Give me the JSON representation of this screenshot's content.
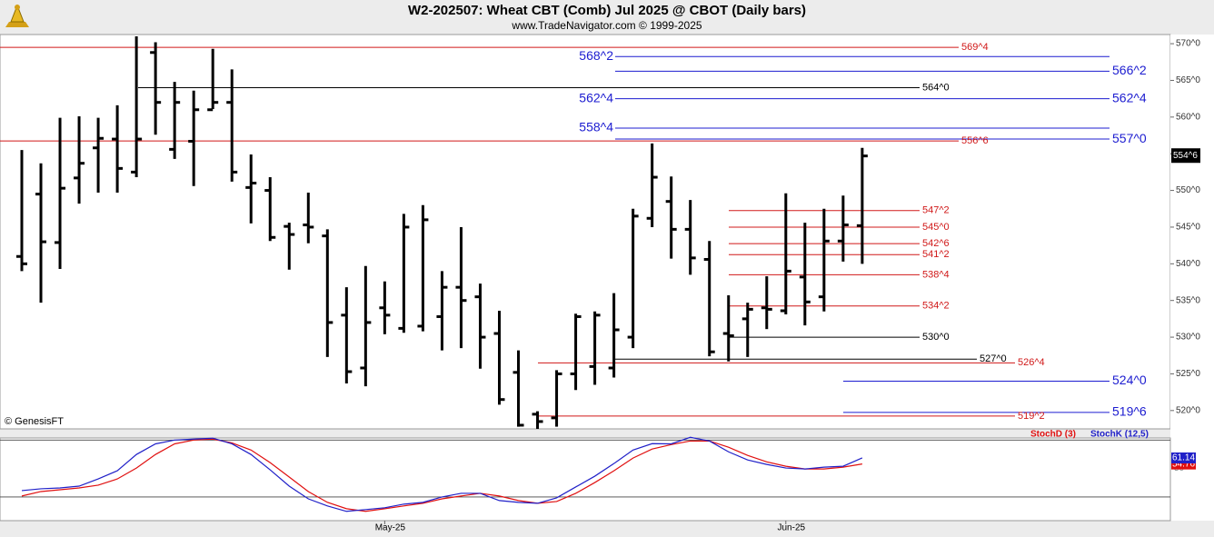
{
  "header": {
    "title": "W2-202507:  Wheat CBT (Comb) Jul 2025 @ CBOT  (Daily bars)",
    "subtitle": "www.TradeNavigator.com © 1999-2025",
    "credit": "© GenesisFT"
  },
  "chart_data": [
    {
      "type": "ohlc",
      "color": "#000000",
      "categories": [
        null,
        null,
        null,
        null,
        null,
        null,
        null,
        null,
        null,
        null,
        null,
        null,
        null,
        null,
        null,
        null,
        null,
        null,
        null,
        "May-25",
        null,
        null,
        null,
        null,
        null,
        null,
        null,
        null,
        null,
        null,
        null,
        null,
        null,
        null,
        null,
        null,
        null,
        null,
        null,
        null,
        "Jun-25",
        null,
        null,
        null,
        null
      ],
      "open": [
        541,
        549.5,
        542.9,
        551.7,
        555.8,
        557,
        552.5,
        568.8,
        555.6,
        556.7,
        561,
        562,
        550.4,
        550,
        545.1,
        545.3,
        543.8,
        533,
        525.8,
        534,
        531.2,
        531.5,
        532.8,
        536.8,
        535.5,
        530.5,
        525.2,
        519.5,
        519,
        525,
        526,
        525.8,
        530,
        546.2,
        548.5,
        544.7,
        540.6,
        530.5,
        532.5,
        534,
        533.6,
        538.2,
        535.5,
        543.1,
        545.2
      ],
      "high": [
        555.5,
        553.7,
        559.9,
        560.1,
        559.9,
        561.6,
        571,
        570.2,
        564.8,
        563.6,
        569.3,
        566.5,
        554.9,
        551.8,
        545.6,
        549.7,
        544.7,
        536.8,
        539.7,
        537.6,
        546.8,
        548,
        539,
        545,
        537.3,
        533.6,
        528.2,
        519.9,
        525.5,
        533.2,
        533.5,
        536,
        547.5,
        556.4,
        551.9,
        548.7,
        543.1,
        535.7,
        534.7,
        538.3,
        549.6,
        545.6,
        547.5,
        549.3,
        555.8
      ],
      "low": [
        539,
        534.7,
        539.3,
        548.2,
        549.7,
        549.7,
        551.8,
        557.6,
        554.3,
        550.6,
        561.1,
        551.2,
        545.5,
        543.1,
        539.2,
        542.8,
        527.3,
        523.7,
        523.3,
        530.4,
        530.6,
        530.8,
        528.2,
        528.5,
        525.7,
        520.8,
        517.8,
        517.5,
        517.8,
        522.8,
        523.5,
        524.5,
        528.5,
        545,
        540.7,
        538.5,
        527.4,
        526.7,
        527.3,
        531.1,
        533.1,
        531.6,
        533.5,
        540.3,
        540
      ],
      "close": [
        540,
        543,
        550.3,
        553.7,
        557.1,
        553,
        557,
        562,
        562,
        561,
        562,
        552.5,
        551,
        543.6,
        544,
        545,
        532,
        525.3,
        532,
        533,
        545,
        546,
        536.8,
        535,
        530,
        521.5,
        518,
        518.5,
        525,
        532.8,
        533,
        531,
        546.5,
        551.8,
        544.7,
        540.8,
        528,
        530.2,
        533.8,
        533.8,
        539,
        534.8,
        543.1,
        545.3,
        554.7
      ],
      "ylim": [
        517.5,
        571.25
      ],
      "yticks": [
        {
          "value": 520,
          "label": "520^0"
        },
        {
          "value": 525,
          "label": "525^0"
        },
        {
          "value": 530,
          "label": "530^0"
        },
        {
          "value": 535,
          "label": "535^0"
        },
        {
          "value": 540,
          "label": "540^0"
        },
        {
          "value": 545,
          "label": "545^0"
        },
        {
          "value": 550,
          "label": "550^0"
        },
        {
          "value": 555,
          "label": "555^0"
        },
        {
          "value": 560,
          "label": "560^0"
        },
        {
          "value": 565,
          "label": "565^0"
        },
        {
          "value": 570,
          "label": "570^0"
        }
      ],
      "last": {
        "value": 554.75,
        "label": "554^6"
      },
      "levels": [
        {
          "value": 569.5,
          "label": "569^4",
          "color": "#d01818"
        },
        {
          "value": 568.25,
          "label": "568^2",
          "color": "#1c1cd0"
        },
        {
          "value": 566.25,
          "label": "566^2",
          "color": "#1c1cd0"
        },
        {
          "value": 564,
          "label": "564^0",
          "color": "#000000"
        },
        {
          "value": 562.5,
          "label": "562^4",
          "color": "#1c1cd0"
        },
        {
          "value": 558.5,
          "label": "558^4",
          "color": "#1c1cd0"
        },
        {
          "value": 557,
          "label": "557^0",
          "color": "#1c1cd0"
        },
        {
          "value": 556.75,
          "label": "556^6",
          "color": "#d01818"
        },
        {
          "value": 547.25,
          "label": "547^2",
          "color": "#d01818"
        },
        {
          "value": 545,
          "label": "545^0",
          "color": "#d01818"
        },
        {
          "value": 542.75,
          "label": "542^6",
          "color": "#d01818"
        },
        {
          "value": 541.25,
          "label": "541^2",
          "color": "#d01818"
        },
        {
          "value": 538.5,
          "label": "538^4",
          "color": "#d01818"
        },
        {
          "value": 534.25,
          "label": "534^2",
          "color": "#d01818"
        },
        {
          "value": 530,
          "label": "530^0",
          "color": "#000000"
        },
        {
          "value": 527,
          "label": "527^0",
          "color": "#000000"
        },
        {
          "value": 526.5,
          "label": "526^4",
          "color": "#d01818"
        },
        {
          "value": 524,
          "label": "524^0",
          "color": "#1c1cd0"
        },
        {
          "value": 519.75,
          "label": "519^6",
          "color": "#1c1cd0"
        },
        {
          "value": 519.25,
          "label": "519^2",
          "color": "#d01818"
        }
      ]
    },
    {
      "type": "line",
      "series": [
        {
          "name": "StochD (3)",
          "color": "#e01010",
          "values": [
            21,
            25.7,
            27.6,
            29.5,
            32.4,
            39,
            50.5,
            64.8,
            76,
            80,
            81,
            77,
            69.5,
            56.2,
            41,
            25.7,
            14.3,
            7.6,
            4.8,
            7.6,
            10.5,
            13.3,
            18,
            21,
            23.8,
            21,
            16.2,
            13.3,
            15.2,
            23.8,
            35.2,
            47.6,
            61,
            70.5,
            75.2,
            79,
            79,
            72.4,
            63.8,
            57,
            52.4,
            49.5,
            49.5,
            51.4,
            54.76
          ]
        },
        {
          "name": "StochK (12,5)",
          "color": "#2020c8",
          "values": [
            26.7,
            28.6,
            29.5,
            31.4,
            39,
            47.6,
            64.8,
            76,
            80,
            81,
            82,
            76,
            64.8,
            48.6,
            31.4,
            18,
            10.5,
            4.8,
            6.7,
            8.6,
            12.4,
            14.3,
            20,
            23.8,
            23.8,
            16.2,
            14.3,
            13.3,
            19,
            30.5,
            41.9,
            55.2,
            69.5,
            76.2,
            76,
            82.9,
            79,
            67.6,
            59,
            54.3,
            50.5,
            49.5,
            51.4,
            52.4,
            61.14
          ]
        }
      ],
      "ylim": [
        -5,
        87
      ],
      "yticks": [
        50
      ],
      "gridlines": [
        20,
        80
      ]
    }
  ]
}
